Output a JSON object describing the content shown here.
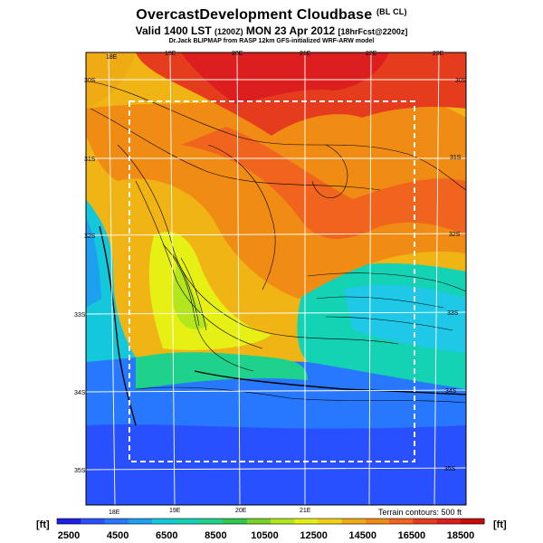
{
  "header": {
    "title": "OvercastDevelopment Cloudbase",
    "title_tag": "(BL CL)",
    "valid_prefix": "Valid 1400 LST",
    "valid_utc": "(1200Z)",
    "valid_date": "MON 23 Apr 2012",
    "forecast": "[18hrFcst@2200z]",
    "model_line": "Dr.Jack BLIPMAP from RASP 12km GFS-initialized WRF-ARW model"
  },
  "map": {
    "lon_labels_top": [
      "18E",
      "19E",
      "20E",
      "21E",
      "22E",
      "23E"
    ],
    "lon_labels_bottom": [
      "18E",
      "19E",
      "20E",
      "21E"
    ],
    "lat_labels_left": [
      "30S",
      "31S",
      "32S",
      "33S",
      "34S",
      "35S"
    ],
    "lat_labels_right": [
      "30S",
      "31S",
      "32S",
      "33S",
      "34S",
      "35S"
    ],
    "terrain_note": "Terrain contours: 500 ft"
  },
  "colorbar": {
    "unit_left": "[ft]",
    "unit_right": "[ft]",
    "tick_labels": [
      "2500",
      "4500",
      "6500",
      "8500",
      "10500",
      "12500",
      "14500",
      "16500",
      "18500"
    ],
    "colors": [
      "#1e1ee6",
      "#2850ff",
      "#2878ff",
      "#1ea0f0",
      "#14c8dc",
      "#14d2b4",
      "#1ed28c",
      "#32c850",
      "#78d228",
      "#b4e61e",
      "#e6f014",
      "#f0d214",
      "#f0aa14",
      "#f08c14",
      "#f0641e",
      "#e63c1e",
      "#dc1e1e",
      "#c80a0a"
    ]
  }
}
